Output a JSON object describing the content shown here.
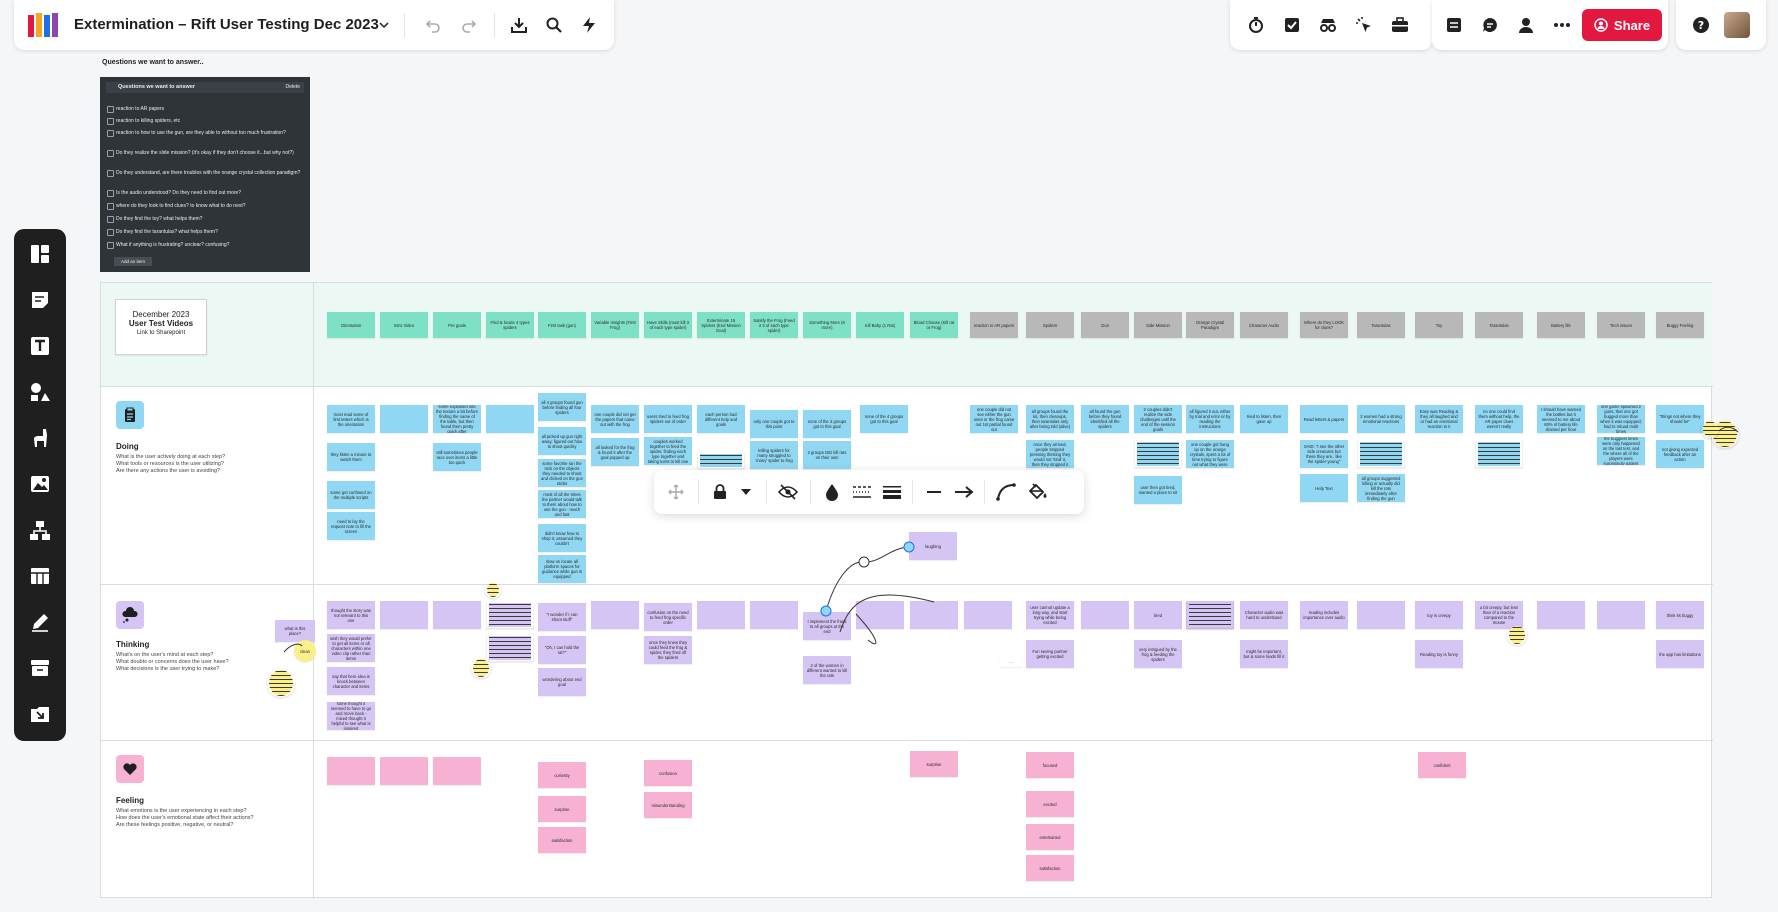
{
  "header": {
    "title": "Extermination – Rift User Testing Dec 2023",
    "share_label": "Share"
  },
  "questions": {
    "heading": "Questions we want to answer..",
    "panel_title": "Questions we want to answer",
    "delete_label": "Delete",
    "items": [
      "reaction to AR papers",
      "reaction to killing spiders, etc",
      "reaction to how to use the gun, are they able to without too much frustration?",
      "Do they realize the slide mission? (it's okay if they don't choose it...but why not?)",
      "Do they understand, are there troubles with the orange crystal collection paradigm?",
      "Is the audio understood? Do they need to find out more?",
      "where do they look to find clues? to know what to do next?",
      "Do they find the toy? what helps them?",
      "Do they find the tarantulas? what helps them?",
      "What if anything is frustrating? unclear? confusing?"
    ],
    "add_label": "Add an item"
  },
  "header_card": {
    "line1": "December 2023",
    "line2": "User Test Videos",
    "line3": "Link to Sharepoint"
  },
  "steps": [
    {
      "label": "Orientation",
      "color": "teal"
    },
    {
      "label": "Intro Video",
      "color": "teal"
    },
    {
      "label": "Pre goals",
      "color": "teal"
    },
    {
      "label": "Find & locate 4 types spiders",
      "color": "teal"
    },
    {
      "label": "First task (gun)",
      "color": "teal"
    },
    {
      "label": "Variable Insights (First Frog)",
      "color": "teal"
    },
    {
      "label": "Have Skills (must kill 3 of each type spider)",
      "color": "teal"
    },
    {
      "label": "Exterminate 15 Spiders (End Mission Goal)",
      "color": "teal"
    },
    {
      "label": "Satisfy the Frog (Feed it 5 of each type spider)",
      "color": "teal"
    },
    {
      "label": "Something More (6 more)",
      "color": "teal"
    },
    {
      "label": "Kill Baby (1 Rat)",
      "color": "teal"
    },
    {
      "label": "Blood Choose (Kill rat or Frog)",
      "color": "teal"
    },
    {
      "label": "reaction to AR papers",
      "color": "grey"
    },
    {
      "label": "Spiders",
      "color": "grey"
    },
    {
      "label": "Gun",
      "color": "grey"
    },
    {
      "label": "Side Mission",
      "color": "grey"
    },
    {
      "label": "Orange Crystal Paradigm",
      "color": "grey"
    },
    {
      "label": "Character Audio",
      "color": "grey"
    },
    {
      "label": "Where do they LOOK for clues?",
      "color": "grey"
    },
    {
      "label": "Tarantulas",
      "color": "grey"
    },
    {
      "label": "Toy",
      "color": "grey"
    },
    {
      "label": "Tarantulas",
      "color": "grey"
    },
    {
      "label": "Battery life",
      "color": "grey"
    },
    {
      "label": "Tech issues",
      "color": "grey"
    },
    {
      "label": "Buggy Feeling",
      "color": "grey"
    }
  ],
  "lanes": {
    "doing": {
      "title": "Doing",
      "desc": [
        "What is the user actively doing at each step?",
        "What tools or resources is the user utilizing?",
        "Are there any actions the user is avoiding?"
      ]
    },
    "thinking": {
      "title": "Thinking",
      "desc": [
        "What's on the user's mind at each step?",
        "What doubts or concerns does the user have?",
        "What decisions is the user trying to make?"
      ]
    },
    "feeling": {
      "title": "Feeling",
      "desc": [
        "What emotions is the user experiencing in each step?",
        "How does the user's emotional state affect their actions?",
        "Are these feelings positive, negative, or neutral?"
      ]
    }
  },
  "doing_notes": [
    "most read some of first letters which is the orientation",
    "they listen a minute to watch them",
    "some get confused on the multiple scripts",
    "need to lay the request note to fill the screen",
    "some explained into the texture a bit before finding the name of the table, but then found them pretty quick after",
    "still sometimes people race over items a little too quick",
    "all 4 groups found gun before finding all four spiders",
    "all picked up gun right away, figured out how to shoot quickly",
    "some favorite ran the trick on the objects they needed to shoot and clicked on the gun sticks",
    "most of all the times the partner would talk to them about how to use the gun - reach and fast",
    "didn't know how to shop it, assumed they couldn't",
    "slow on locate all platform spaces for guidance while gun is equipped",
    "one couple did not get the papers that came out with the frog",
    "all looked for the frog & found it after the goal popped up",
    "users tried to feed frog spiders out of order",
    "couples worked together to feed the spider, finding each type together and taking turns to kill one",
    "each person had different help and goals",
    "only one couple got to this point",
    "telling spiders for many struggled to 'many' spider to frog",
    "none of the 4 groups got to this goal",
    "2 groups DID kill rats on their own",
    "none of the 4 groups got to this goal",
    "one couple did not see either the gun ones or the frog came out 1st partial found out",
    "all groups found the kit, then cleanups, then tarantulas only after being told (alive)",
    "once they arrived, people stopped pressing thinking they would not 'kind' it, then they stopped it",
    "all found the gun before they found identified all the spiders",
    "2 couples didn't realize the side challenges until the end of the session goals",
    "user then got tired, wanted a place to sit",
    "all figured it out, either by trial and error or by reading the instructions",
    "one couple got hung up on the orange crystals, spent a lot of time trying to figure out what they were",
    "tried to listen, then gave up",
    "Read letters & papers",
    "SAID: \"I see the other side creatures but there they are.. like the spider-young\"",
    "Help Text",
    "2 women had a strong emotional reactions",
    "all groups suggested killing or actually did kill the rats immediately after finding the gun",
    "Easy was Reading & they all laughed and or had an emotional reaction to it",
    "no one could find them without help, the AR paper clues weren't really",
    "I should have warned the bottles but it seemed to me about 60% of battery life drained per hour",
    "one game spawned 2 guns, that one got bugged more than when it was equipped; had to reload multi times",
    "the buggiest times were only happened on the last test, and the where all of the players were surprisingly patient",
    "\"things not where they should be\"",
    "not giving expected feedback after an action",
    "ran into a few bugs"
  ],
  "thinking_notes": [
    "what is this place?",
    "clean",
    "thought the story was not relevant to this one",
    "wish they would prefer to get all items or all characters within one video clip rather than items",
    "say that here idea is knock between character and items",
    "some thought it seemed to have to go and move back - mixed thought it helpful to see what is inspired",
    "\"I wonder if I can shoot stuff\"",
    "\"Oh, I can hold the rat?\"",
    "wondering about end goal",
    "confusion on the need to feed frog specific order",
    "once they knew they could feed the frog & spider, they fired off the spiders",
    "I implement the frank to all groups at the end",
    "2 of the women in different wanted to kill the rats",
    "laughing",
    "user cannot update a long way, and start trying while being excited",
    "Fun seeing partner getting excited",
    "tired",
    "very intrigued by the frog & feeding the spiders",
    "Character audio was hard to understand",
    "might be important, but & some loads fill it",
    "reading includes importance over audio",
    "toy is creepy",
    "Reading toy is funny",
    "a bit creepy, but less than of a reaction compared to the mouse",
    "think its buggy",
    "the app has limitations",
    "..."
  ],
  "feeling_notes": [
    "curiosity",
    "surprise",
    "satisfaction",
    "confusion",
    "misunderstanding",
    "surprise",
    "focused",
    "excited",
    "entertained",
    "satisfaction",
    "confident"
  ],
  "icons": {
    "undo": "undo-icon",
    "redo": "redo-icon",
    "download": "download-icon",
    "search": "search-icon",
    "lightning": "lightning-icon",
    "help": "help-icon"
  },
  "colors": {
    "accent": "#e4173f",
    "teal": "#7ee0c5",
    "blue": "#8fd7f2",
    "purple": "#d5c5f4",
    "pink": "#f7b2d3",
    "yellow": "#fbef8a",
    "grey": "#b8b8b8"
  }
}
